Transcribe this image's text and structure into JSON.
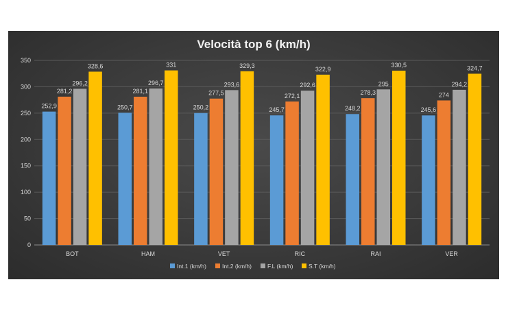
{
  "chart_data": {
    "type": "bar",
    "title": "Velocità top 6 (km/h)",
    "xlabel": "",
    "ylabel": "",
    "ylim": [
      0,
      350
    ],
    "y_ticks": [
      "0",
      "50",
      "100",
      "150",
      "200",
      "250",
      "300",
      "350"
    ],
    "grid": true,
    "legend_position": "bottom",
    "categories": [
      "BOT",
      "HAM",
      "VET",
      "RIC",
      "RAI",
      "VER"
    ],
    "series": [
      {
        "name": "Int.1 (km/h)",
        "color": "#5b9bd5",
        "values": [
          252.9,
          250.7,
          250.2,
          245.7,
          248.2,
          245.6
        ],
        "labels": [
          "252,9",
          "250,7",
          "250,2",
          "245,7",
          "248,2",
          "245,6"
        ]
      },
      {
        "name": "Int.2 (km/h)",
        "color": "#ed7d31",
        "values": [
          281.2,
          281.1,
          277.5,
          272.1,
          278.3,
          274
        ],
        "labels": [
          "281,2",
          "281,1",
          "277,5",
          "272,1",
          "278,3",
          "274"
        ]
      },
      {
        "name": "F.L (km/h)",
        "color": "#a5a5a5",
        "values": [
          296.2,
          296.7,
          293.6,
          292.6,
          295,
          294.2
        ],
        "labels": [
          "296,2",
          "296,7",
          "293,6",
          "292,6",
          "295",
          "294,2"
        ]
      },
      {
        "name": "S.T (km/h)",
        "color": "#ffc000",
        "values": [
          328.6,
          331,
          329.3,
          322.9,
          330.5,
          324.7
        ],
        "labels": [
          "328,6",
          "331",
          "329,3",
          "322,9",
          "330,5",
          "324,7"
        ]
      }
    ]
  }
}
